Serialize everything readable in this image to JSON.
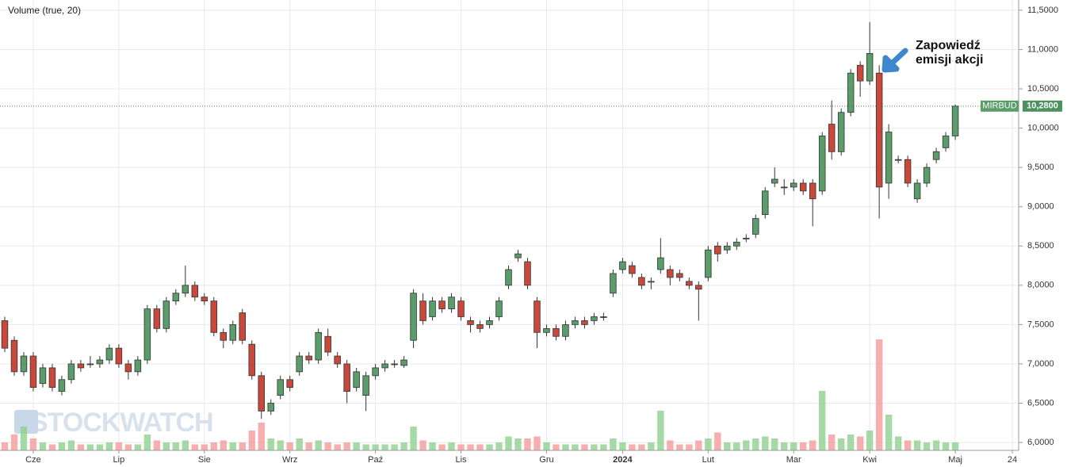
{
  "chart_data": {
    "type": "candlestick",
    "indicator_label": "Volume (true, 20)",
    "watermark": "STOCKWATCH",
    "annotation": [
      "Zapowiedź",
      "emisji akcji"
    ],
    "symbol": "MIRBUD",
    "last_price": {
      "value": 10.28,
      "label": "10,2800"
    },
    "up_color": "#5a9c6a",
    "down_color": "#c8493c",
    "volume_up_color": "#8fd08f",
    "volume_down_color": "#f49a9a",
    "open": [
      7.55,
      7.3,
      6.9,
      7.1,
      6.75,
      6.95,
      6.65,
      6.8,
      7.0,
      7.0,
      7.0,
      7.05,
      7.2,
      7.0,
      6.9,
      7.05,
      7.7,
      7.45,
      7.8,
      7.9,
      8.0,
      7.85,
      7.8,
      7.4,
      7.3,
      7.65,
      7.25,
      6.85,
      6.4,
      6.6,
      6.8,
      6.9,
      7.1,
      7.05,
      7.35,
      7.1,
      7.0,
      6.7,
      6.6,
      6.85,
      6.95,
      7.0,
      6.98,
      7.3,
      7.8,
      7.6,
      7.8,
      7.7,
      7.8,
      7.55,
      7.5,
      7.5,
      7.6,
      8.0,
      8.35,
      8.3,
      7.8,
      7.4,
      7.45,
      7.35,
      7.5,
      7.55,
      7.55,
      7.6,
      7.9,
      8.2,
      8.25,
      8.1,
      8.05,
      8.2,
      8.2,
      8.15,
      8.05,
      8.0,
      8.1,
      8.5,
      8.45,
      8.5,
      8.6,
      8.65,
      8.9,
      9.3,
      9.25,
      9.25,
      9.3,
      9.3,
      9.2,
      10.05,
      9.7,
      10.2,
      10.8,
      10.6,
      10.7,
      9.3,
      9.6,
      9.6,
      9.1,
      9.3,
      9.6,
      9.75,
      9.9
    ],
    "high": [
      7.6,
      7.35,
      7.15,
      7.15,
      7.0,
      7.0,
      6.85,
      7.05,
      7.05,
      7.1,
      7.1,
      7.25,
      7.25,
      7.05,
      7.1,
      7.75,
      7.75,
      7.85,
      7.95,
      8.25,
      8.05,
      7.9,
      7.85,
      7.45,
      7.55,
      7.7,
      7.3,
      6.9,
      6.55,
      6.85,
      6.85,
      7.15,
      7.15,
      7.45,
      7.45,
      7.15,
      7.05,
      6.95,
      6.9,
      7.0,
      7.05,
      7.05,
      7.1,
      7.95,
      7.9,
      7.85,
      7.85,
      7.9,
      7.85,
      7.6,
      7.55,
      7.6,
      7.85,
      8.25,
      8.45,
      8.35,
      7.85,
      7.5,
      7.5,
      7.55,
      7.6,
      7.6,
      7.65,
      7.65,
      8.2,
      8.35,
      8.3,
      8.15,
      8.1,
      8.6,
      8.25,
      8.2,
      8.1,
      8.05,
      8.5,
      8.55,
      8.55,
      8.6,
      8.65,
      8.9,
      9.25,
      9.5,
      9.35,
      9.35,
      9.35,
      9.35,
      9.95,
      10.35,
      10.25,
      10.75,
      10.85,
      11.35,
      10.8,
      10.05,
      9.65,
      9.65,
      9.35,
      9.55,
      9.75,
      9.95,
      10.3
    ],
    "low": [
      7.15,
      6.85,
      6.85,
      6.65,
      6.7,
      6.65,
      6.6,
      6.75,
      6.9,
      6.95,
      6.95,
      7.0,
      6.95,
      6.8,
      6.85,
      7.0,
      7.4,
      7.4,
      7.75,
      7.85,
      7.8,
      7.75,
      7.35,
      7.2,
      7.25,
      7.25,
      6.8,
      6.3,
      6.35,
      6.55,
      6.65,
      6.85,
      7.0,
      7.0,
      7.1,
      6.95,
      6.5,
      6.65,
      6.4,
      6.8,
      6.9,
      6.95,
      6.95,
      7.2,
      7.5,
      7.55,
      7.65,
      7.65,
      7.55,
      7.4,
      7.4,
      7.45,
      7.55,
      7.95,
      8.3,
      7.95,
      7.2,
      7.35,
      7.3,
      7.3,
      7.45,
      7.45,
      7.5,
      7.55,
      7.85,
      8.15,
      8.1,
      7.95,
      7.95,
      8.15,
      8.0,
      8.05,
      7.95,
      7.55,
      8.05,
      8.3,
      8.4,
      8.45,
      8.55,
      8.6,
      8.85,
      9.25,
      9.15,
      9.2,
      9.15,
      8.75,
      9.15,
      9.6,
      9.65,
      10.15,
      10.4,
      10.55,
      8.85,
      9.1,
      9.55,
      9.25,
      9.05,
      9.25,
      9.55,
      9.7,
      9.85
    ],
    "close": [
      7.2,
      6.9,
      7.1,
      6.7,
      6.95,
      6.7,
      6.8,
      7.0,
      6.95,
      7.0,
      7.05,
      7.2,
      7.0,
      6.9,
      7.05,
      7.7,
      7.45,
      7.8,
      7.9,
      8.0,
      7.85,
      7.8,
      7.4,
      7.3,
      7.5,
      7.3,
      6.85,
      6.4,
      6.5,
      6.8,
      6.7,
      7.1,
      7.05,
      7.4,
      7.15,
      7.0,
      6.65,
      6.9,
      6.85,
      6.95,
      7.0,
      7.0,
      7.05,
      7.9,
      7.55,
      7.8,
      7.7,
      7.85,
      7.6,
      7.5,
      7.45,
      7.55,
      7.8,
      8.2,
      8.4,
      8.0,
      7.4,
      7.45,
      7.35,
      7.5,
      7.55,
      7.5,
      7.6,
      7.6,
      8.15,
      8.3,
      8.15,
      8.0,
      8.05,
      8.35,
      8.1,
      8.1,
      8.0,
      7.95,
      8.45,
      8.4,
      8.5,
      8.55,
      8.6,
      8.85,
      9.2,
      9.35,
      9.25,
      9.3,
      9.2,
      9.1,
      9.9,
      9.7,
      10.2,
      10.7,
      10.6,
      10.95,
      9.25,
      9.95,
      9.6,
      9.3,
      9.3,
      9.5,
      9.7,
      9.9,
      10.28
    ],
    "volume": [
      20,
      40,
      60,
      30,
      20,
      15,
      20,
      25,
      15,
      15,
      15,
      20,
      20,
      15,
      15,
      40,
      25,
      20,
      20,
      25,
      15,
      15,
      20,
      25,
      20,
      20,
      50,
      70,
      30,
      25,
      20,
      30,
      20,
      25,
      20,
      15,
      20,
      20,
      15,
      15,
      15,
      15,
      20,
      60,
      25,
      20,
      15,
      20,
      15,
      15,
      15,
      15,
      20,
      35,
      30,
      30,
      35,
      20,
      15,
      15,
      15,
      15,
      15,
      15,
      30,
      20,
      15,
      15,
      20,
      100,
      25,
      15,
      15,
      25,
      30,
      45,
      20,
      20,
      25,
      30,
      35,
      30,
      20,
      20,
      20,
      25,
      150,
      40,
      30,
      40,
      35,
      50,
      280,
      90,
      35,
      25,
      25,
      20,
      25,
      20,
      20
    ],
    "xlim": [
      -0.5,
      106.5
    ],
    "xticks": [
      {
        "value": 3,
        "label": "Cze"
      },
      {
        "value": 12,
        "label": "Lip"
      },
      {
        "value": 21,
        "label": "Sie"
      },
      {
        "value": 30,
        "label": "Wrz"
      },
      {
        "value": 39,
        "label": "Paź"
      },
      {
        "value": 48,
        "label": "Lis"
      },
      {
        "value": 57,
        "label": "Gru"
      },
      {
        "value": 65,
        "label": "2024"
      },
      {
        "value": 74,
        "label": "Lut"
      },
      {
        "value": 83,
        "label": "Mar"
      },
      {
        "value": 91,
        "label": "Kwi"
      },
      {
        "value": 100,
        "label": "Maj"
      },
      {
        "value": 106,
        "label": "24"
      }
    ],
    "ylim": [
      5.9,
      11.63
    ],
    "yticks": [
      {
        "value": 6.0,
        "label": "6,0000"
      },
      {
        "value": 6.5,
        "label": "6,5000"
      },
      {
        "value": 7.0,
        "label": "7,0000"
      },
      {
        "value": 7.5,
        "label": "7,5000"
      },
      {
        "value": 8.0,
        "label": "8,0000"
      },
      {
        "value": 8.5,
        "label": "8,5000"
      },
      {
        "value": 9.0,
        "label": "9,0000"
      },
      {
        "value": 9.5,
        "label": "9,5000"
      },
      {
        "value": 10.0,
        "label": "10,0000"
      },
      {
        "value": 10.5,
        "label": "10,5000"
      },
      {
        "value": 11.0,
        "label": "11,0000"
      },
      {
        "value": 11.5,
        "label": "11,5000"
      }
    ],
    "grid": true
  }
}
